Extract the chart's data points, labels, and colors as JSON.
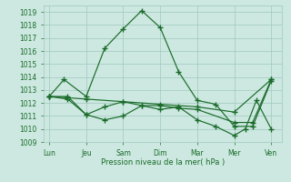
{
  "background_color": "#cce8e0",
  "grid_color": "#a0c8be",
  "line_color": "#1a6b2a",
  "xlabel": "Pression niveau de la mer( hPa )",
  "ylim": [
    1009,
    1019.5
  ],
  "yticks": [
    1009,
    1010,
    1011,
    1012,
    1013,
    1014,
    1015,
    1016,
    1017,
    1018,
    1019
  ],
  "xtick_labels": [
    "Lun",
    "Jeu",
    "Sam",
    "Dim",
    "Mar",
    "Mer",
    "Ven"
  ],
  "xtick_positions": [
    0,
    1,
    2,
    3,
    4,
    5,
    6
  ],
  "lines": [
    {
      "x": [
        0,
        0.4,
        1.0,
        1.5,
        2.0,
        2.5,
        3.0,
        3.5,
        4.0,
        4.5,
        5.0,
        5.5,
        6.0
      ],
      "y": [
        1012.5,
        1013.8,
        1012.5,
        1016.2,
        1017.7,
        1019.1,
        1017.8,
        1014.4,
        1012.2,
        1011.9,
        1010.2,
        1010.2,
        1013.7
      ]
    },
    {
      "x": [
        0,
        1.0,
        2.0,
        3.0,
        4.0,
        5.0,
        6.0
      ],
      "y": [
        1012.5,
        1012.3,
        1012.1,
        1011.9,
        1011.7,
        1011.3,
        1013.8
      ]
    },
    {
      "x": [
        0,
        0.5,
        1.0,
        1.5,
        2.0,
        2.5,
        3.0,
        3.5,
        4.0,
        5.0,
        5.5,
        6.0
      ],
      "y": [
        1012.5,
        1012.5,
        1011.1,
        1011.7,
        1012.1,
        1011.8,
        1011.8,
        1011.6,
        1011.5,
        1010.5,
        1010.5,
        1013.8
      ]
    },
    {
      "x": [
        0,
        0.5,
        1.0,
        1.5,
        2.0,
        2.5,
        3.0,
        3.5,
        4.0,
        4.5,
        5.0,
        5.3,
        5.6,
        6.0
      ],
      "y": [
        1012.5,
        1012.3,
        1011.1,
        1010.7,
        1011.0,
        1011.8,
        1011.5,
        1011.7,
        1010.7,
        1010.2,
        1009.5,
        1010.0,
        1012.2,
        1010.0
      ]
    }
  ]
}
